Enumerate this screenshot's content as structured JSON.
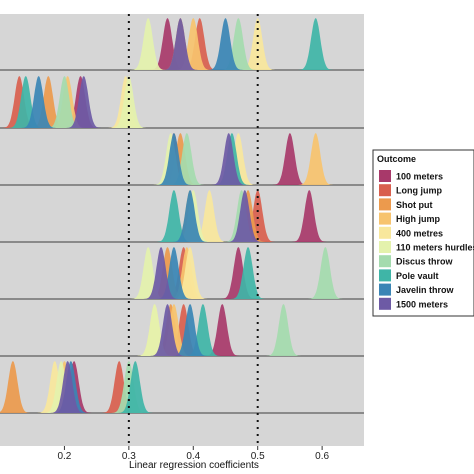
{
  "chart_data": {
    "type": "ridgeline-density",
    "xlabel": "Linear regression coefficients",
    "ylabel": "",
    "xlim": [
      0.1,
      0.665
    ],
    "xticks": [
      0.2,
      0.3,
      0.4,
      0.5,
      0.6
    ],
    "xtick_labels": [
      "0.2",
      "0.3",
      "0.4",
      "0.5",
      "0.6"
    ],
    "reference_lines": [
      0.3,
      0.5
    ],
    "grid": false,
    "legend_title": "Outcome",
    "legend_position": "right",
    "legend": [
      {
        "name": "100 meters",
        "color": "#a8396a"
      },
      {
        "name": "Long jump",
        "color": "#d95f4e"
      },
      {
        "name": "Shot put",
        "color": "#ec9a4d"
      },
      {
        "name": "High jump",
        "color": "#f7c36e"
      },
      {
        "name": "400 metres",
        "color": "#f8e79c"
      },
      {
        "name": "110 meters hurdles",
        "color": "#e4f2ac"
      },
      {
        "name": "Discus throw",
        "color": "#a4dbae"
      },
      {
        "name": "Pole vault",
        "color": "#3fb5a7"
      },
      {
        "name": "Javelin throw",
        "color": "#3a85b5"
      },
      {
        "name": "1500 meters",
        "color": "#6d5aa5"
      }
    ],
    "rows": [
      {
        "peaks": [
          0.36,
          0.41,
          0.38,
          0.4,
          0.5,
          0.33,
          0.47,
          0.59,
          0.45,
          0.38
        ]
      },
      {
        "peaks": [
          0.225,
          0.13,
          0.175,
          0.205,
          0.295,
          0.3,
          0.2,
          0.14,
          0.16,
          0.23
        ]
      },
      {
        "peaks": [
          0.55,
          0.37,
          0.38,
          0.59,
          0.47,
          0.365,
          0.39,
          0.46,
          0.37,
          0.455
        ]
      },
      {
        "peaks": [
          0.58,
          0.5,
          0.485,
          0.395,
          0.425,
          0.4,
          0.475,
          0.37,
          0.395,
          0.48
        ]
      },
      {
        "peaks": [
          0.47,
          0.385,
          0.36,
          0.39,
          0.395,
          0.33,
          0.605,
          0.485,
          0.37,
          0.35
        ]
      },
      {
        "peaks": [
          0.445,
          0.385,
          0.365,
          0.37,
          0.34,
          0.34,
          0.54,
          0.415,
          0.395,
          0.36
        ]
      },
      {
        "peaks": [
          0.215,
          0.285,
          0.12,
          0.2,
          0.185,
          0.195,
          0.3,
          0.31,
          0.21,
          0.205
        ]
      }
    ]
  }
}
